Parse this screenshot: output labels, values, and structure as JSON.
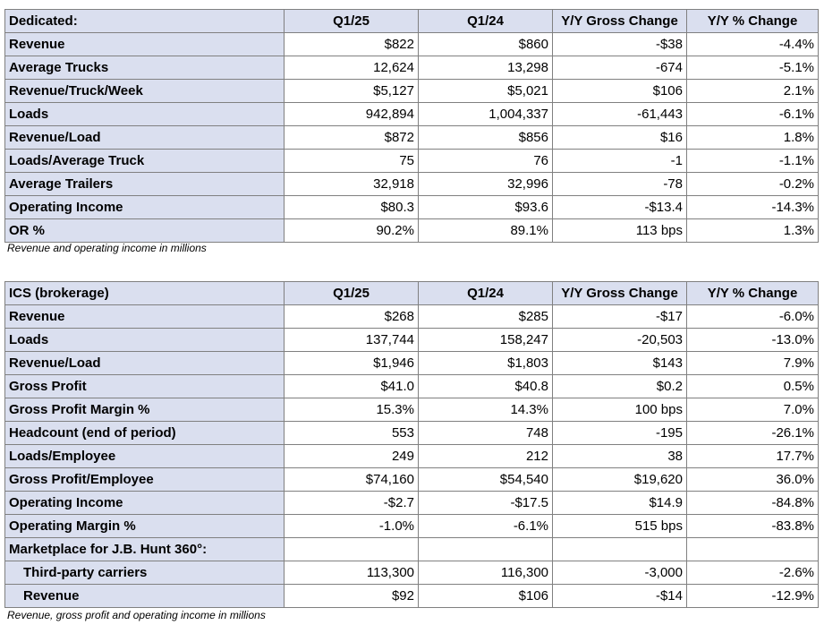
{
  "dedicated": {
    "headers": [
      "Dedicated:",
      "Q1/25",
      "Q1/24",
      "Y/Y Gross Change",
      "Y/Y % Change"
    ],
    "rows": [
      {
        "label": "Revenue",
        "q1_25": "$822",
        "q1_24": "$860",
        "gross": "-$38",
        "pct": "-4.4%"
      },
      {
        "label": "Average Trucks",
        "q1_25": "12,624",
        "q1_24": "13,298",
        "gross": "-674",
        "pct": "-5.1%"
      },
      {
        "label": "Revenue/Truck/Week",
        "q1_25": "$5,127",
        "q1_24": "$5,021",
        "gross": "$106",
        "pct": "2.1%"
      },
      {
        "label": "Loads",
        "q1_25": "942,894",
        "q1_24": "1,004,337",
        "gross": "-61,443",
        "pct": "-6.1%"
      },
      {
        "label": "Revenue/Load",
        "q1_25": "$872",
        "q1_24": "$856",
        "gross": "$16",
        "pct": "1.8%"
      },
      {
        "label": "Loads/Average Truck",
        "q1_25": "75",
        "q1_24": "76",
        "gross": "-1",
        "pct": "-1.1%"
      },
      {
        "label": "Average Trailers",
        "q1_25": "32,918",
        "q1_24": "32,996",
        "gross": "-78",
        "pct": "-0.2%"
      },
      {
        "label": "Operating Income",
        "q1_25": "$80.3",
        "q1_24": "$93.6",
        "gross": "-$13.4",
        "pct": "-14.3%"
      },
      {
        "label": "OR %",
        "q1_25": "90.2%",
        "q1_24": "89.1%",
        "gross": "113 bps",
        "pct": "1.3%"
      }
    ],
    "note": "Revenue and operating income in millions"
  },
  "ics": {
    "headers": [
      "ICS (brokerage)",
      "Q1/25",
      "Q1/24",
      "Y/Y Gross Change",
      "Y/Y % Change"
    ],
    "rows": [
      {
        "label": "Revenue",
        "q1_25": "$268",
        "q1_24": "$285",
        "gross": "-$17",
        "pct": "-6.0%"
      },
      {
        "label": "Loads",
        "q1_25": "137,744",
        "q1_24": "158,247",
        "gross": "-20,503",
        "pct": "-13.0%"
      },
      {
        "label": "Revenue/Load",
        "q1_25": "$1,946",
        "q1_24": "$1,803",
        "gross": "$143",
        "pct": "7.9%"
      },
      {
        "label": "Gross Profit",
        "q1_25": "$41.0",
        "q1_24": "$40.8",
        "gross": "$0.2",
        "pct": "0.5%"
      },
      {
        "label": "Gross Profit Margin %",
        "q1_25": "15.3%",
        "q1_24": "14.3%",
        "gross": "100 bps",
        "pct": "7.0%"
      },
      {
        "label": "Headcount (end of period)",
        "q1_25": "553",
        "q1_24": "748",
        "gross": "-195",
        "pct": "-26.1%"
      },
      {
        "label": "Loads/Employee",
        "q1_25": "249",
        "q1_24": "212",
        "gross": "38",
        "pct": "17.7%"
      },
      {
        "label": "Gross Profit/Employee",
        "q1_25": "$74,160",
        "q1_24": "$54,540",
        "gross": "$19,620",
        "pct": "36.0%"
      },
      {
        "label": "Operating Income",
        "q1_25": "-$2.7",
        "q1_24": "-$17.5",
        "gross": "$14.9",
        "pct": "-84.8%"
      },
      {
        "label": "Operating Margin %",
        "q1_25": "-1.0%",
        "q1_24": "-6.1%",
        "gross": "515 bps",
        "pct": "-83.8%"
      },
      {
        "label": "Marketplace for J.B. Hunt 360°:",
        "q1_25": "",
        "q1_24": "",
        "gross": "",
        "pct": ""
      },
      {
        "label": "Third-party carriers",
        "q1_25": "113,300",
        "q1_24": "116,300",
        "gross": "-3,000",
        "pct": "-2.6%"
      },
      {
        "label": "Revenue",
        "q1_25": "$92",
        "q1_24": "$106",
        "gross": "-$14",
        "pct": "-12.9%"
      }
    ],
    "note": "Revenue, gross profit and operating income in millions"
  }
}
